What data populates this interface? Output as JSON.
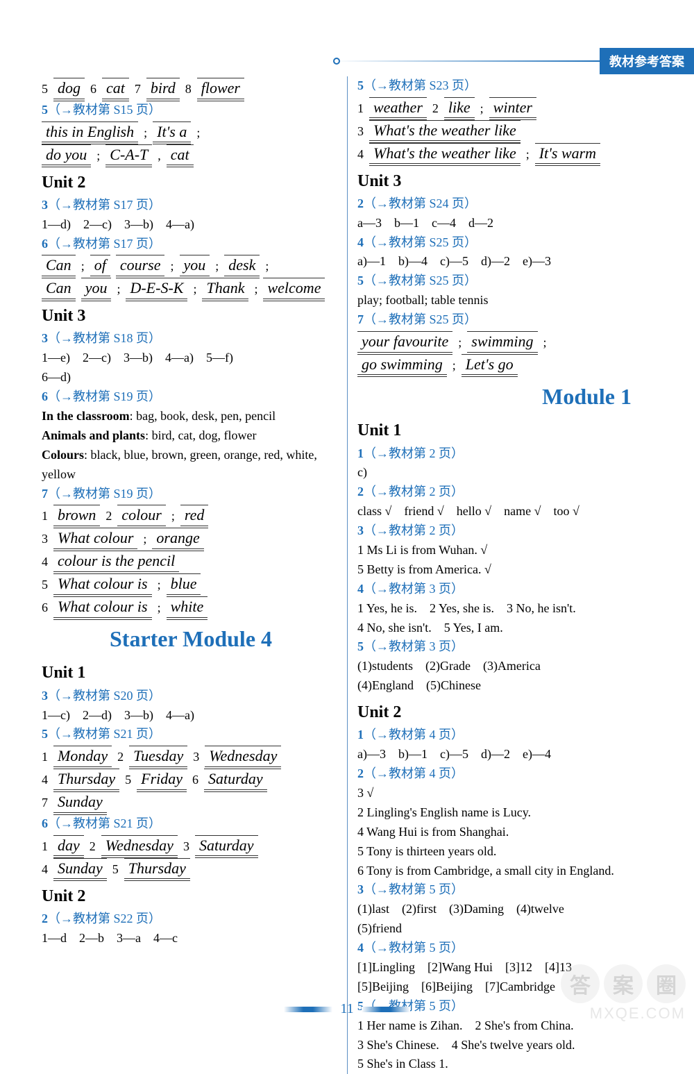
{
  "header": {
    "label": "教材参考答案"
  },
  "colors": {
    "brand": "#1e6fb8",
    "text": "#000000",
    "rule": "#333333"
  },
  "left": {
    "row1": {
      "n5": "5",
      "w5": "dog",
      "n6": "6",
      "w6": "cat",
      "n7": "7",
      "w7": "bird",
      "n8": "8",
      "w8": "flower"
    },
    "ref_s15": {
      "num": "5",
      "text": "（→教材第 S15 页）"
    },
    "s15_l1a": "this in English",
    "s15_l1b": "It's a",
    "s15_l2a": "do you",
    "s15_l2b": "C-A-T",
    "s15_l2c": "cat",
    "unit2": "Unit 2",
    "ref_s17_3": {
      "num": "3",
      "text": "（→教材第 S17 页）"
    },
    "s17_3_ans": "1—d)　2—c)　3—b)　4—a)",
    "ref_s17_6": {
      "num": "6",
      "text": "（→教材第 S17 页）"
    },
    "s17_6_l1": [
      "Can",
      "of",
      "course",
      "you",
      "desk"
    ],
    "s17_6_l2": [
      "Can",
      "you",
      "D-E-S-K",
      "Thank",
      "welcome"
    ],
    "unit3": "Unit 3",
    "ref_s18_3": {
      "num": "3",
      "text": "（→教材第 S18 页）"
    },
    "s18_3_l1": "1—e)　2—c)　3—b)　4—a)　5—f)",
    "s18_3_l2": "6—d)",
    "ref_s19_6": {
      "num": "6",
      "text": "（→教材第 S19 页）"
    },
    "s19_6_a": "In the classroom: bag, book, desk, pen, pencil",
    "s19_6_a_bold": "In the classroom",
    "s19_6_a_rest": ": bag, book, desk, pen, pencil",
    "s19_6_b_bold": "Animals and plants",
    "s19_6_b_rest": ": bird, cat, dog, flower",
    "s19_6_c_bold": "Colours",
    "s19_6_c_rest": ": black, blue, brown, green, orange, red, white, yellow",
    "ref_s19_7": {
      "num": "7",
      "text": "（→教材第 S19 页）"
    },
    "s19_7": {
      "n1": "1",
      "w1": "brown",
      "n2": "2",
      "w2a": "colour",
      "w2b": "red",
      "n3": "3",
      "w3a": "What colour",
      "w3b": "orange",
      "n4": "4",
      "w4": "colour is the pencil",
      "n5": "5",
      "w5a": "What colour is",
      "w5b": "blue",
      "n6": "6",
      "w6a": "What colour is",
      "w6b": "white"
    },
    "module4": "Starter Module 4",
    "m4_unit1": "Unit 1",
    "ref_s20_3": {
      "num": "3",
      "text": "（→教材第 S20 页）"
    },
    "s20_3_ans": "1—c)　2—d)　3—b)　4—a)",
    "ref_s21_5": {
      "num": "5",
      "text": "（→教材第 S21 页）"
    },
    "days": {
      "n1": "1",
      "w1": "Monday",
      "n2": "2",
      "w2": "Tuesday",
      "n3": "3",
      "w3": "Wednesday",
      "n4": "4",
      "w4": "Thursday",
      "n5": "5",
      "w5": "Friday",
      "n6": "6",
      "w6": "Saturday",
      "n7": "7",
      "w7": "Sunday"
    },
    "ref_s21_6": {
      "num": "6",
      "text": "（→教材第 S21 页）"
    },
    "s21_6": {
      "n1": "1",
      "w1": "day",
      "n2": "2",
      "w2": "Wednesday",
      "n3": "3",
      "w3": "Saturday",
      "n4": "4",
      "w4": "Sunday",
      "n5": "5",
      "w5": "Thursday"
    },
    "m4_unit2": "Unit 2",
    "ref_s22_2": {
      "num": "2",
      "text": "（→教材第 S22 页）"
    },
    "s22_2_ans": "1—d　2—b　3—a　4—c"
  },
  "right": {
    "ref_s23_5": {
      "num": "5",
      "text": "（→教材第 S23 页）"
    },
    "s23": {
      "n1": "1",
      "w1": "weather",
      "n2": "2",
      "w2a": "like",
      "w2b": "winter",
      "n3": "3",
      "w3": "What's the weather like",
      "n4": "4",
      "w4a": "What's the weather like",
      "w4b": "It's warm"
    },
    "unit3": "Unit 3",
    "ref_s24_2": {
      "num": "2",
      "text": "（→教材第 S24 页）"
    },
    "s24_2_ans": "a—3　b—1　c—4　d—2",
    "ref_s25_4": {
      "num": "4",
      "text": "（→教材第 S25 页）"
    },
    "s25_4_ans": "a)—1　b)—4　c)—5　d)—2　e)—3",
    "ref_s25_5": {
      "num": "5",
      "text": "（→教材第 S25 页）"
    },
    "s25_5_ans": "play; football; table tennis",
    "ref_s25_7": {
      "num": "7",
      "text": "（→教材第 S25 页）"
    },
    "s25_7_l1": [
      "your favourite",
      "swimming"
    ],
    "s25_7_l2": [
      "go swimming",
      "Let's go"
    ],
    "module1": "Module 1",
    "m1_unit1": "Unit 1",
    "ref_p2_1": {
      "num": "1",
      "text": "（→教材第 2 页）"
    },
    "p2_1_ans": "c)",
    "ref_p2_2": {
      "num": "2",
      "text": "（→教材第 2 页）"
    },
    "p2_2_ans": "class √　friend √　hello √　name √　too √",
    "ref_p2_3": {
      "num": "3",
      "text": "（→教材第 2 页）"
    },
    "p2_3_l1": "1 Ms Li is from Wuhan. √",
    "p2_3_l2": "5 Betty is from America. √",
    "ref_p3_4": {
      "num": "4",
      "text": "（→教材第 3 页）"
    },
    "p3_4_l1": "1 Yes, he is.　2 Yes, she is.　3 No, he isn't.",
    "p3_4_l2": "4 No, she isn't.　5 Yes, I am.",
    "ref_p3_5": {
      "num": "5",
      "text": "（→教材第 3 页）"
    },
    "p3_5_l1": "(1)students　(2)Grade　(3)America",
    "p3_5_l2": "(4)England　(5)Chinese",
    "m1_unit2": "Unit 2",
    "ref_p4_1": {
      "num": "1",
      "text": "（→教材第 4 页）"
    },
    "p4_1_ans": "a)—3　b)—1　c)—5　d)—2　e)—4",
    "ref_p4_2": {
      "num": "2",
      "text": "（→教材第 4 页）"
    },
    "p4_2_l1": "3 √",
    "p4_2_l2": "2 Lingling's English name is Lucy.",
    "p4_2_l3": "4 Wang Hui is from Shanghai.",
    "p4_2_l4": "5 Tony is thirteen years old.",
    "p4_2_l5": "6 Tony is from Cambridge, a small city in England.",
    "ref_p5_3": {
      "num": "3",
      "text": "（→教材第 5 页）"
    },
    "p5_3_l1": "(1)last　(2)first　(3)Daming　(4)twelve",
    "p5_3_l2": "(5)friend",
    "ref_p5_4": {
      "num": "4",
      "text": "（→教材第 5 页）"
    },
    "p5_4_l1": "[1]Lingling　[2]Wang Hui　[3]12　[4]13",
    "p5_4_l2": "[5]Beijing　[6]Beijing　[7]Cambridge",
    "ref_p5_5": {
      "num": "5",
      "text": "（→教材第 5 页）"
    },
    "p5_5_l1": "1 Her name is Zihan.　2 She's from China.",
    "p5_5_l2": "3 She's Chinese.　4 She's twelve years old.",
    "p5_5_l3": "5 She's in Class 1."
  },
  "footer": {
    "page": "11"
  },
  "watermark": {
    "c1": "答",
    "c2": "案",
    "c3": "圈",
    "url": "MXQE.COM"
  }
}
